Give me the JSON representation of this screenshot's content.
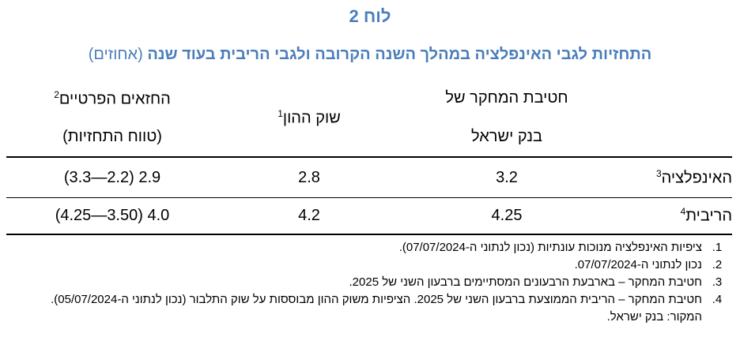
{
  "header": {
    "title": "לוח 2",
    "subtitle": "התחזיות לגבי האינפלציה במהלך השנה הקרובה ולגבי הריבית בעוד שנה",
    "unit": "(אחוזים)"
  },
  "table": {
    "columns": [
      {
        "lines": [
          "חטיבת המחקר של",
          "בנק ישראל"
        ]
      },
      {
        "lines": [
          "שוק ההון"
        ],
        "note": "1"
      },
      {
        "lines": [
          "החזאים הפרטיים",
          "(טווח התחזיות)"
        ],
        "note": "2"
      }
    ],
    "rows": [
      {
        "label": "האינפלציה",
        "note": "3",
        "cells": [
          "3.2",
          "2.8",
          "2.9 (2.2—3.3)"
        ]
      },
      {
        "label": "הריבית",
        "note": "4",
        "cells": [
          "4.25",
          "4.2",
          "4.0 (3.50—4.25)"
        ]
      }
    ]
  },
  "notes": [
    {
      "marker": "1.",
      "text": "ציפיות האינפלציה מנוכות עונתיות (נכון לנתוני ה-07/07/2024)."
    },
    {
      "marker": "2.",
      "text": "נכון לנתוני ה-07/07/2024."
    },
    {
      "marker": "3.",
      "text": "חטיבת המחקר – בארבעת הרבעונים המסתיימים ברבעון השני של 2025."
    },
    {
      "marker": "4.",
      "text": "חטיבת המחקר – הריבית הממוצעת ברבעון השני של 2025. הציפיות משוק ההון מבוססות על שוק התלבור (נכון לנתוני ה-05/07/2024)."
    }
  ],
  "source": "המקור: בנק ישראל."
}
